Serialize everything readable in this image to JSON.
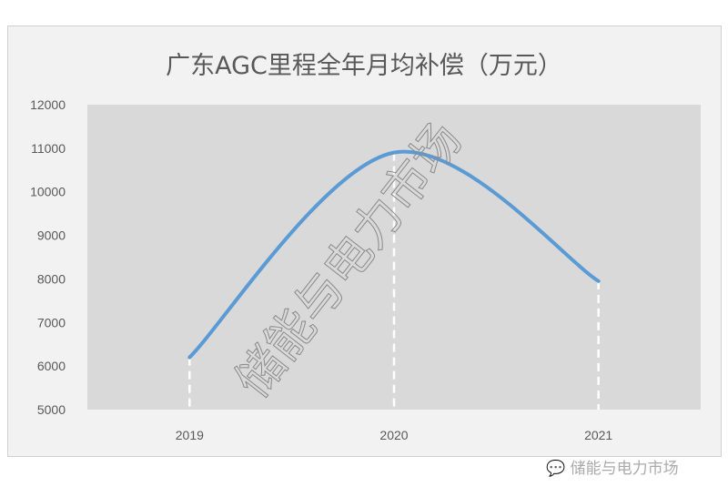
{
  "chart_data": {
    "type": "line",
    "title": "广东AGC里程全年月均补偿（万元）",
    "categories": [
      "2019",
      "2020",
      "2021"
    ],
    "values": [
      6200,
      10900,
      7950
    ],
    "ylim": [
      5000,
      12000
    ],
    "yticks": [
      5000,
      6000,
      7000,
      8000,
      9000,
      10000,
      11000,
      12000
    ],
    "smooth": true,
    "drop_lines": "white dashed",
    "grid": false,
    "colors": {
      "line": "#5b9bd5",
      "plot_bg": "#d9d9d9",
      "frame_bg": "#f2f2f2"
    }
  },
  "watermark": {
    "diagonal": "储能与电力市场",
    "footer": "储能与电力市场",
    "icon": "wechat-icon"
  }
}
